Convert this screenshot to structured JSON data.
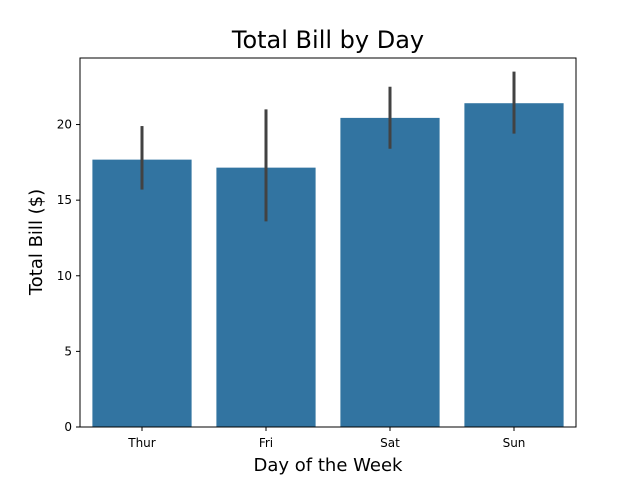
{
  "chart_data": {
    "type": "bar",
    "title": "Total Bill by Day",
    "xlabel": "Day of the Week",
    "ylabel": "Total Bill ($)",
    "categories": [
      "Thur",
      "Fri",
      "Sat",
      "Sun"
    ],
    "values": [
      17.68,
      17.15,
      20.44,
      21.41
    ],
    "error_low": [
      15.7,
      13.6,
      18.4,
      19.4
    ],
    "error_high": [
      19.9,
      21.0,
      22.5,
      23.5
    ],
    "ylim": [
      0,
      24.4
    ],
    "yticks": [
      0,
      5,
      10,
      15,
      20
    ],
    "grid": false,
    "bar_color": "#3274a1",
    "errorbar_color": "#424242"
  }
}
